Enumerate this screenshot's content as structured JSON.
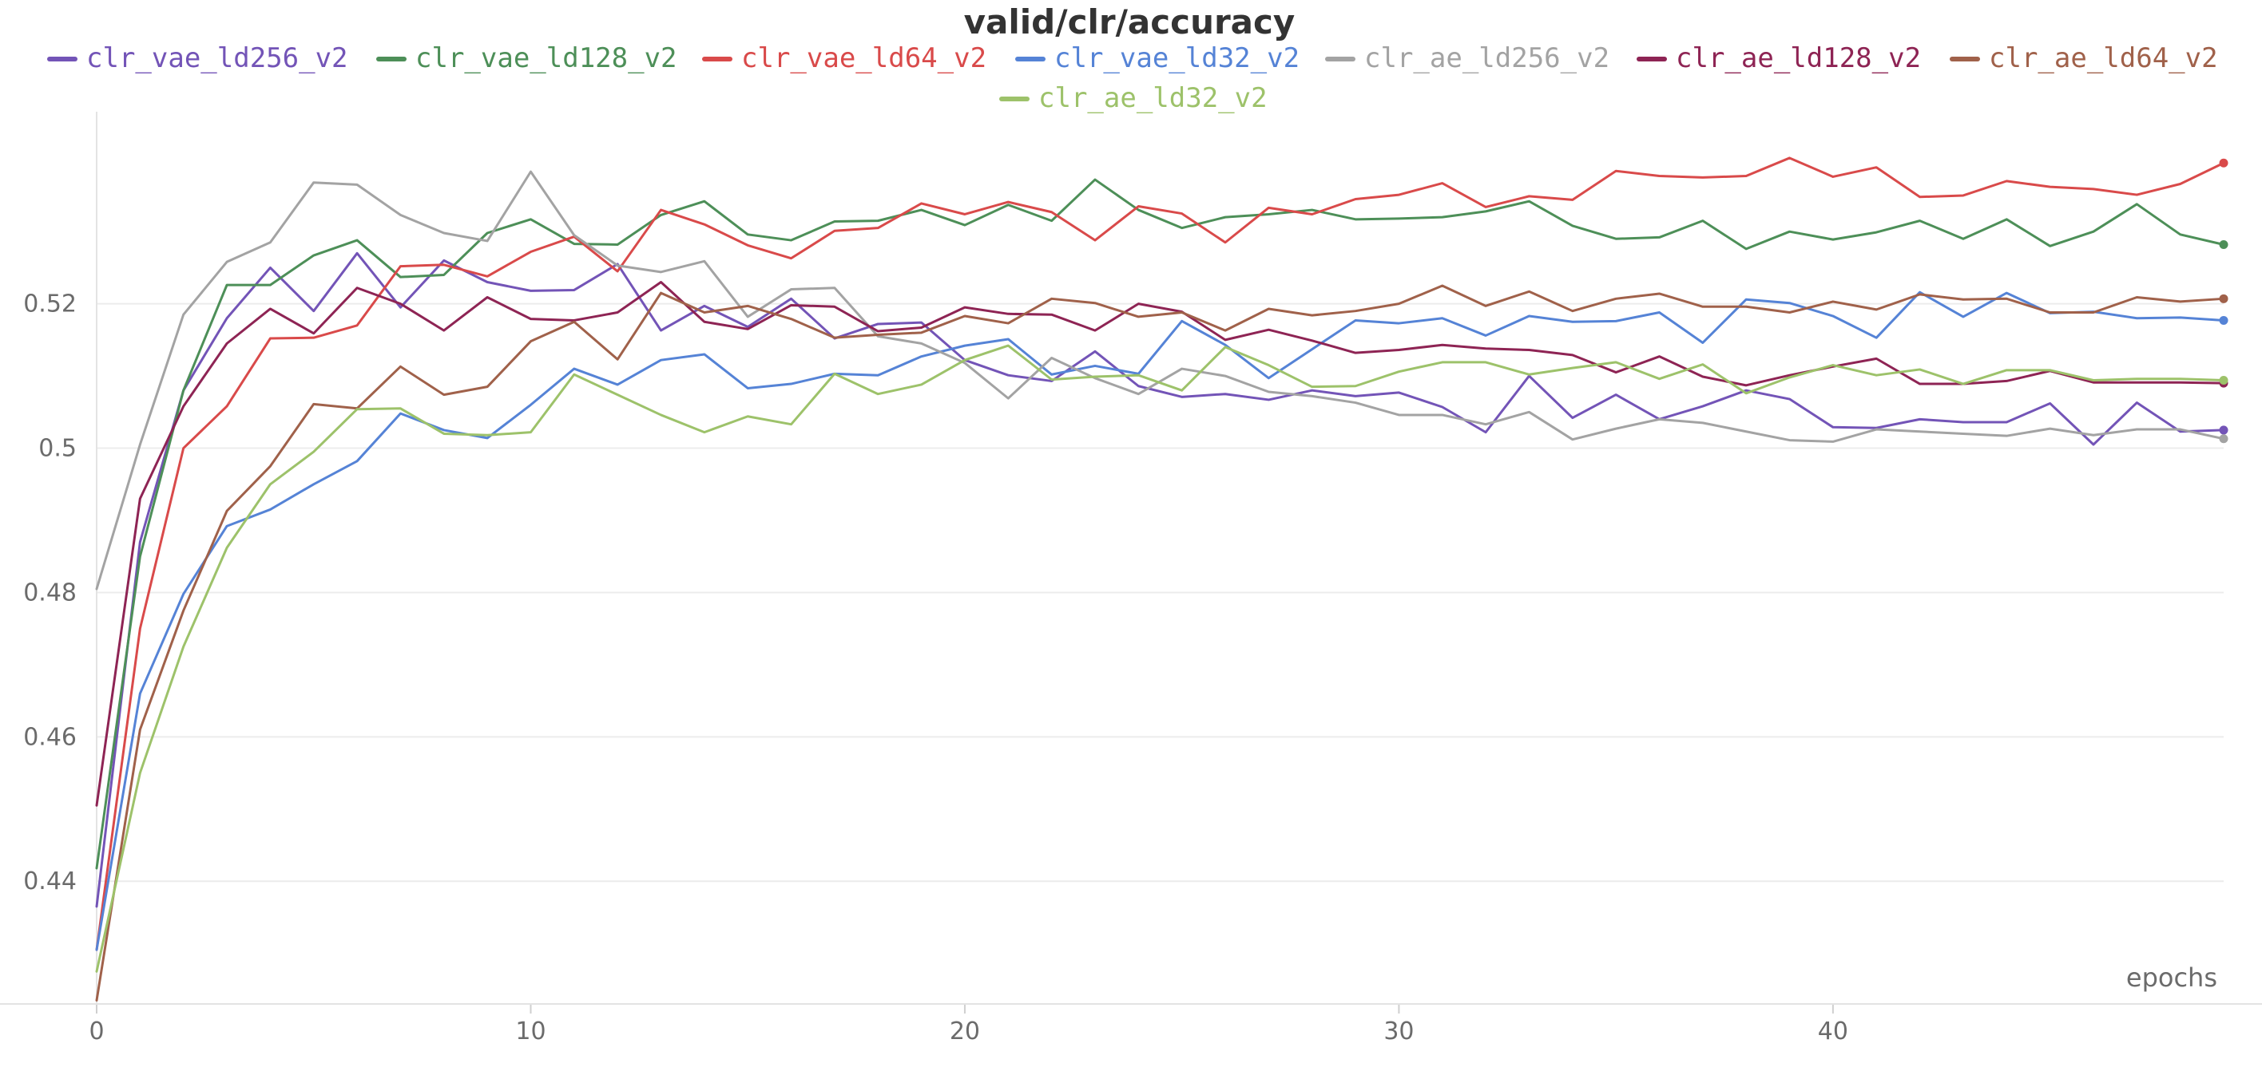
{
  "chart_data": {
    "type": "line",
    "title": "valid/clr/accuracy",
    "xlabel": "epochs",
    "ylabel": "",
    "xlim": [
      0,
      49
    ],
    "ylim": [
      0.423,
      0.5455
    ],
    "xticks": [
      0,
      10,
      20,
      30,
      40
    ],
    "yticks": [
      0.44,
      0.46,
      0.48,
      0.5,
      0.52
    ],
    "ytick_labels": [
      "0.44",
      "0.46",
      "0.48",
      "0.5",
      "0.52"
    ],
    "grid": true,
    "legend_position": "top",
    "x": [
      0,
      1,
      2,
      3,
      4,
      5,
      6,
      7,
      8,
      9,
      10,
      11,
      12,
      13,
      14,
      15,
      16,
      17,
      18,
      19,
      20,
      21,
      22,
      23,
      24,
      25,
      26,
      27,
      28,
      29,
      30,
      31,
      32,
      33,
      34,
      35,
      36,
      37,
      38,
      39,
      40,
      41,
      42,
      43,
      44,
      45,
      46,
      47,
      48,
      49
    ],
    "series": [
      {
        "name": "clr_vae_ld256_v2",
        "color": "#7354b7",
        "values": [
          0.4365,
          0.487,
          0.508,
          0.518,
          0.525,
          0.519,
          0.527,
          0.5195,
          0.526,
          0.523,
          0.5218,
          0.5219,
          0.5255,
          0.5163,
          0.5197,
          0.5168,
          0.5207,
          0.5152,
          0.5172,
          0.5174,
          0.5122,
          0.5101,
          0.5093,
          0.5134,
          0.5086,
          0.5071,
          0.5075,
          0.5067,
          0.508,
          0.5072,
          0.5077,
          0.5057,
          0.5022,
          0.51,
          0.5042,
          0.5074,
          0.504,
          0.5058,
          0.508,
          0.5068,
          0.5029,
          0.5028,
          0.504,
          0.5036,
          0.5036,
          0.5062,
          0.5005,
          0.5063,
          0.5023,
          0.5025
        ]
      },
      {
        "name": "clr_vae_ld128_v2",
        "color": "#4d8f58",
        "values": [
          0.4418,
          0.485,
          0.508,
          0.5226,
          0.5226,
          0.5267,
          0.5288,
          0.5237,
          0.524,
          0.5298,
          0.5317,
          0.5283,
          0.5282,
          0.5323,
          0.5342,
          0.5296,
          0.5288,
          0.5314,
          0.5315,
          0.533,
          0.5309,
          0.5337,
          0.5315,
          0.5372,
          0.533,
          0.5305,
          0.532,
          0.5324,
          0.533,
          0.5317,
          0.5318,
          0.532,
          0.5328,
          0.5342,
          0.5308,
          0.529,
          0.5292,
          0.5315,
          0.5276,
          0.53,
          0.5289,
          0.5299,
          0.5315,
          0.529,
          0.5317,
          0.528,
          0.53,
          0.5338,
          0.5296,
          0.5282
        ]
      },
      {
        "name": "clr_vae_ld64_v2",
        "color": "#d94a4a",
        "values": [
          0.4305,
          0.475,
          0.5,
          0.5058,
          0.5152,
          0.5153,
          0.517,
          0.5252,
          0.5254,
          0.5238,
          0.5272,
          0.5293,
          0.5245,
          0.533,
          0.531,
          0.5281,
          0.5263,
          0.5301,
          0.5305,
          0.5339,
          0.5324,
          0.5341,
          0.5327,
          0.5288,
          0.5335,
          0.5325,
          0.5285,
          0.5333,
          0.5324,
          0.5345,
          0.5351,
          0.5367,
          0.5334,
          0.5349,
          0.5344,
          0.5384,
          0.5377,
          0.5375,
          0.5377,
          0.5402,
          0.5376,
          0.5389,
          0.5348,
          0.535,
          0.537,
          0.5362,
          0.5359,
          0.5351,
          0.5366,
          0.5395
        ]
      },
      {
        "name": "clr_vae_ld32_v2",
        "color": "#5583d6",
        "values": [
          0.4305,
          0.466,
          0.4798,
          0.4892,
          0.4915,
          0.495,
          0.4982,
          0.5048,
          0.5025,
          0.5014,
          0.506,
          0.511,
          0.5088,
          0.5122,
          0.513,
          0.5083,
          0.5089,
          0.5103,
          0.5101,
          0.5127,
          0.5142,
          0.5151,
          0.5102,
          0.5114,
          0.5103,
          0.5176,
          0.5143,
          0.5097,
          0.5137,
          0.5177,
          0.5173,
          0.518,
          0.5156,
          0.5183,
          0.5175,
          0.5176,
          0.5188,
          0.5146,
          0.5206,
          0.5201,
          0.5183,
          0.5153,
          0.5216,
          0.5182,
          0.5215,
          0.5187,
          0.5189,
          0.518,
          0.5181,
          0.5177
        ]
      },
      {
        "name": "clr_ae_ld256_v2",
        "color": "#a3a3a3",
        "values": [
          0.4805,
          0.5005,
          0.5185,
          0.5258,
          0.5285,
          0.5368,
          0.5365,
          0.5323,
          0.5298,
          0.5287,
          0.5383,
          0.5295,
          0.5253,
          0.5244,
          0.5259,
          0.5182,
          0.522,
          0.5222,
          0.5155,
          0.5145,
          0.5118,
          0.5069,
          0.5125,
          0.5097,
          0.5075,
          0.511,
          0.51,
          0.5078,
          0.5072,
          0.5063,
          0.5046,
          0.5046,
          0.5033,
          0.505,
          0.5012,
          0.5027,
          0.504,
          0.5035,
          0.5023,
          0.5011,
          0.5009,
          0.5026,
          0.5023,
          0.502,
          0.5017,
          0.5027,
          0.5018,
          0.5026,
          0.5026,
          0.5013
        ]
      },
      {
        "name": "clr_ae_ld128_v2",
        "color": "#8e2454",
        "values": [
          0.4505,
          0.493,
          0.5058,
          0.5145,
          0.5193,
          0.5159,
          0.5222,
          0.52,
          0.5163,
          0.5209,
          0.5179,
          0.5177,
          0.5188,
          0.523,
          0.5175,
          0.5165,
          0.5198,
          0.5196,
          0.5162,
          0.5167,
          0.5195,
          0.5186,
          0.5185,
          0.5163,
          0.52,
          0.5189,
          0.515,
          0.5164,
          0.5149,
          0.5132,
          0.5136,
          0.5143,
          0.5138,
          0.5136,
          0.5129,
          0.5105,
          0.5127,
          0.5099,
          0.5087,
          0.5101,
          0.5113,
          0.5124,
          0.5089,
          0.5089,
          0.5093,
          0.5107,
          0.5091,
          0.5091,
          0.5091,
          0.509
        ]
      },
      {
        "name": "clr_ae_ld64_v2",
        "color": "#a0614a",
        "values": [
          0.4235,
          0.461,
          0.4775,
          0.4913,
          0.4975,
          0.5061,
          0.5055,
          0.5113,
          0.5074,
          0.5085,
          0.5148,
          0.5175,
          0.5123,
          0.5215,
          0.5188,
          0.5197,
          0.5179,
          0.5153,
          0.5157,
          0.516,
          0.5183,
          0.5173,
          0.5207,
          0.5201,
          0.5182,
          0.5188,
          0.5163,
          0.5193,
          0.5184,
          0.519,
          0.52,
          0.5225,
          0.5197,
          0.5217,
          0.519,
          0.5207,
          0.5214,
          0.5196,
          0.5196,
          0.5188,
          0.5203,
          0.5192,
          0.5213,
          0.5206,
          0.5207,
          0.5188,
          0.5188,
          0.5209,
          0.5203,
          0.5207
        ]
      },
      {
        "name": "clr_ae_ld32_v2",
        "color": "#9dc26a",
        "values": [
          0.4275,
          0.455,
          0.4725,
          0.4862,
          0.495,
          0.4995,
          0.5054,
          0.5055,
          0.502,
          0.5018,
          0.5022,
          0.5102,
          0.5074,
          0.5046,
          0.5022,
          0.5044,
          0.5033,
          0.5103,
          0.5075,
          0.5088,
          0.5122,
          0.5142,
          0.5095,
          0.5099,
          0.5101,
          0.508,
          0.514,
          0.5115,
          0.5085,
          0.5086,
          0.5106,
          0.5119,
          0.5119,
          0.5102,
          0.5111,
          0.5119,
          0.5096,
          0.5116,
          0.5076,
          0.5098,
          0.5115,
          0.5101,
          0.5109,
          0.5089,
          0.5108,
          0.5108,
          0.5094,
          0.5096,
          0.5096,
          0.5094
        ]
      }
    ]
  }
}
